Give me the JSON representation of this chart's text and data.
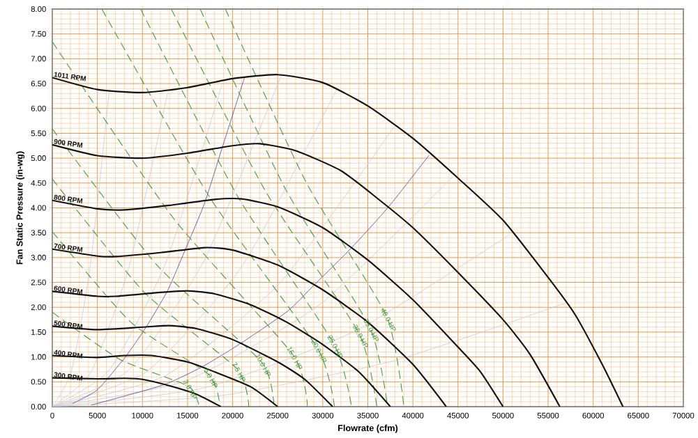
{
  "chart_data": {
    "type": "line",
    "xlabel": "Flowrate (cfm)",
    "ylabel": "Fan Static Pressure (in-wg)",
    "xlim": [
      0,
      70000
    ],
    "ylim": [
      0,
      8
    ],
    "xticks": [
      0,
      {
        "value": 1000,
        "label": null
      },
      {
        "value": 2000,
        "label": null
      },
      {
        "value": 3000,
        "label": null
      },
      {
        "value": 4000,
        "label": null
      },
      5000,
      {
        "value": 6000,
        "label": null
      },
      {
        "value": 7000,
        "label": null
      },
      {
        "value": 8000,
        "label": null
      },
      {
        "value": 9000,
        "label": null
      },
      10000,
      {
        "value": 11000,
        "label": null
      },
      {
        "value": 12000,
        "label": null
      },
      {
        "value": 13000,
        "label": null
      },
      {
        "value": 14000,
        "label": null
      },
      15000,
      {
        "value": 16000,
        "label": null
      },
      {
        "value": 17000,
        "label": null
      },
      {
        "value": 18000,
        "label": null
      },
      {
        "value": 19000,
        "label": null
      },
      20000,
      {
        "value": 21000,
        "label": null
      },
      {
        "value": 22000,
        "label": null
      },
      {
        "value": 23000,
        "label": null
      },
      {
        "value": 24000,
        "label": null
      },
      25000,
      {
        "value": 26000,
        "label": null
      },
      {
        "value": 27000,
        "label": null
      },
      {
        "value": 28000,
        "label": null
      },
      {
        "value": 29000,
        "label": null
      },
      30000,
      {
        "value": 31000,
        "label": null
      },
      {
        "value": 32000,
        "label": null
      },
      {
        "value": 33000,
        "label": null
      },
      {
        "value": 34000,
        "label": null
      },
      35000,
      {
        "value": 36000,
        "label": null
      },
      {
        "value": 37000,
        "label": null
      },
      {
        "value": 38000,
        "label": null
      },
      {
        "value": 39000,
        "label": null
      },
      40000,
      {
        "value": 41000,
        "label": null
      },
      {
        "value": 42000,
        "label": null
      },
      {
        "value": 43000,
        "label": null
      },
      {
        "value": 44000,
        "label": null
      },
      45000,
      {
        "value": 46000,
        "label": null
      },
      {
        "value": 47000,
        "label": null
      },
      {
        "value": 48000,
        "label": null
      },
      {
        "value": 49000,
        "label": null
      },
      50000,
      {
        "value": 51000,
        "label": null
      },
      {
        "value": 52000,
        "label": null
      },
      {
        "value": 53000,
        "label": null
      },
      {
        "value": 54000,
        "label": null
      },
      55000,
      {
        "value": 56000,
        "label": null
      },
      {
        "value": 57000,
        "label": null
      },
      {
        "value": 58000,
        "label": null
      },
      {
        "value": 59000,
        "label": null
      },
      60000,
      {
        "value": 61000,
        "label": null
      },
      {
        "value": 62000,
        "label": null
      },
      {
        "value": 63000,
        "label": null
      },
      {
        "value": 64000,
        "label": null
      },
      65000,
      {
        "value": 66000,
        "label": null
      },
      {
        "value": 67000,
        "label": null
      },
      {
        "value": 68000,
        "label": null
      },
      {
        "value": 69000,
        "label": null
      },
      70000
    ],
    "yticks": [
      {
        "value": 0,
        "label": "0.00"
      },
      {
        "value": 0.1,
        "label": null
      },
      {
        "value": 0.2,
        "label": null
      },
      {
        "value": 0.3,
        "label": null
      },
      {
        "value": 0.4,
        "label": null
      },
      {
        "value": 0.5,
        "label": "0.50"
      },
      {
        "value": 0.6,
        "label": null
      },
      {
        "value": 0.7,
        "label": null
      },
      {
        "value": 0.8,
        "label": null
      },
      {
        "value": 0.9,
        "label": null
      },
      {
        "value": 1,
        "label": "1.00"
      },
      {
        "value": 1.1,
        "label": null
      },
      {
        "value": 1.2,
        "label": null
      },
      {
        "value": 1.3,
        "label": null
      },
      {
        "value": 1.4,
        "label": null
      },
      {
        "value": 1.5,
        "label": "1.50"
      },
      {
        "value": 1.6,
        "label": null
      },
      {
        "value": 1.7,
        "label": null
      },
      {
        "value": 1.8,
        "label": null
      },
      {
        "value": 1.9,
        "label": null
      },
      {
        "value": 2,
        "label": "2.00"
      },
      {
        "value": 2.1,
        "label": null
      },
      {
        "value": 2.2,
        "label": null
      },
      {
        "value": 2.3,
        "label": null
      },
      {
        "value": 2.4,
        "label": null
      },
      {
        "value": 2.5,
        "label": "2.50"
      },
      {
        "value": 2.6,
        "label": null
      },
      {
        "value": 2.7,
        "label": null
      },
      {
        "value": 2.8,
        "label": null
      },
      {
        "value": 2.9,
        "label": null
      },
      {
        "value": 3,
        "label": "3.00"
      },
      {
        "value": 3.1,
        "label": null
      },
      {
        "value": 3.2,
        "label": null
      },
      {
        "value": 3.3,
        "label": null
      },
      {
        "value": 3.4,
        "label": null
      },
      {
        "value": 3.5,
        "label": "3.50"
      },
      {
        "value": 3.6,
        "label": null
      },
      {
        "value": 3.7,
        "label": null
      },
      {
        "value": 3.8,
        "label": null
      },
      {
        "value": 3.9,
        "label": null
      },
      {
        "value": 4,
        "label": "4.00"
      },
      {
        "value": 4.1,
        "label": null
      },
      {
        "value": 4.2,
        "label": null
      },
      {
        "value": 4.3,
        "label": null
      },
      {
        "value": 4.4,
        "label": null
      },
      {
        "value": 4.5,
        "label": "4.50"
      },
      {
        "value": 4.6,
        "label": null
      },
      {
        "value": 4.7,
        "label": null
      },
      {
        "value": 4.8,
        "label": null
      },
      {
        "value": 4.9,
        "label": null
      },
      {
        "value": 5,
        "label": "5.00"
      },
      {
        "value": 5.1,
        "label": null
      },
      {
        "value": 5.2,
        "label": null
      },
      {
        "value": 5.3,
        "label": null
      },
      {
        "value": 5.4,
        "label": null
      },
      {
        "value": 5.5,
        "label": "5.50"
      },
      {
        "value": 5.6,
        "label": null
      },
      {
        "value": 5.7,
        "label": null
      },
      {
        "value": 5.8,
        "label": null
      },
      {
        "value": 5.9,
        "label": null
      },
      {
        "value": 6,
        "label": "6.00"
      },
      {
        "value": 6.1,
        "label": null
      },
      {
        "value": 6.2,
        "label": null
      },
      {
        "value": 6.3,
        "label": null
      },
      {
        "value": 6.4,
        "label": null
      },
      {
        "value": 6.5,
        "label": "6.50"
      },
      {
        "value": 6.6,
        "label": null
      },
      {
        "value": 6.7,
        "label": null
      },
      {
        "value": 6.8,
        "label": null
      },
      {
        "value": 6.9,
        "label": null
      },
      {
        "value": 7,
        "label": "7.00"
      },
      {
        "value": 7.1,
        "label": null
      },
      {
        "value": 7.2,
        "label": null
      },
      {
        "value": 7.3,
        "label": null
      },
      {
        "value": 7.4,
        "label": null
      },
      {
        "value": 7.5,
        "label": "7.50"
      },
      {
        "value": 7.6,
        "label": null
      },
      {
        "value": 7.7,
        "label": null
      },
      {
        "value": 7.8,
        "label": null
      },
      {
        "value": 7.9,
        "label": null
      },
      {
        "value": 8,
        "label": "8.00"
      }
    ],
    "grid": true,
    "marker": "none",
    "series": [
      {
        "color": "#c8c8d2",
        "line_style": "solid",
        "x": [
          0,
          2100,
          4200,
          6300
        ],
        "values": [
          0,
          0.7,
          2.81,
          6.32
        ]
      },
      {
        "color": "#c8c8d2",
        "line_style": "solid",
        "x": [
          0,
          4300,
          8500,
          12800
        ],
        "values": [
          0,
          0.7,
          2.81,
          6.32
        ]
      },
      {
        "color": "#c8c8d2",
        "line_style": "solid",
        "x": [
          0,
          6300,
          12600,
          18900
        ],
        "values": [
          0,
          0.73,
          2.9,
          6.53
        ]
      },
      {
        "color": "#c8c8d2",
        "line_style": "solid",
        "x": [
          0,
          8500,
          16900,
          25400
        ],
        "values": [
          0,
          0.74,
          2.96,
          6.67
        ]
      },
      {
        "color": "#c8c8d2",
        "line_style": "solid",
        "x": [
          0,
          10500,
          21100,
          31600
        ],
        "values": [
          0,
          0.71,
          2.84,
          6.4
        ]
      },
      {
        "color": "#c8c8d2",
        "line_style": "solid",
        "x": [
          0,
          12600,
          25300,
          37900
        ],
        "values": [
          0,
          0.63,
          2.5,
          5.63
        ]
      },
      {
        "color": "#c8c8d2",
        "line_style": "solid",
        "x": [
          0,
          14800,
          29700,
          44500
        ],
        "values": [
          0,
          0.52,
          2.06,
          4.64
        ]
      },
      {
        "color": "#c8c8d2",
        "line_style": "solid",
        "x": [
          0,
          16900,
          33800,
          50700
        ],
        "values": [
          0,
          0.38,
          1.54,
          3.46
        ]
      },
      {
        "color": "#c8c8d2",
        "line_style": "solid",
        "x": [
          0,
          19000,
          38000,
          57000
        ],
        "values": [
          0,
          0.23,
          0.93,
          2.09
        ]
      },
      {
        "color": "#4444a0",
        "line_style": "solid",
        "x": [
          2200,
          5000,
          8100,
          10400,
          12800,
          14800,
          16900,
          18900,
          21300
        ],
        "values": [
          0.06,
          0.34,
          1.0,
          1.6,
          2.34,
          3.18,
          4.1,
          5.24,
          6.61
        ]
      },
      {
        "color": "#4444a0",
        "line_style": "solid",
        "x": [
          4300,
          12200,
          16600,
          20700,
          26100,
          29000,
          33100,
          37300,
          41800
        ],
        "values": [
          0.03,
          0.43,
          0.8,
          1.25,
          1.92,
          2.44,
          3.18,
          4.02,
          5.06
        ]
      },
      {
        "name": "3.0 HP",
        "color": "#3a9a3a",
        "line_style": "dashed",
        "x": [
          0,
          7500,
          15100,
          16300
        ],
        "values": [
          1.9,
          0.95,
          0.41,
          0
        ]
      },
      {
        "name": "5.0 HP",
        "color": "#3a9a3a",
        "line_style": "dashed",
        "x": [
          0,
          8700,
          17400,
          18600
        ],
        "values": [
          3.52,
          1.7,
          0.64,
          0
        ]
      },
      {
        "name": "7.5 HP",
        "color": "#3a9a3a",
        "line_style": "dashed",
        "x": [
          0,
          10200,
          20500,
          21800
        ],
        "values": [
          4.58,
          2.3,
          0.76,
          0
        ]
      },
      {
        "name": "10.0 HP",
        "color": "#3a9a3a",
        "line_style": "dashed",
        "x": [
          0,
          11600,
          23200,
          24600
        ],
        "values": [
          5.59,
          2.85,
          0.9,
          0
        ]
      },
      {
        "name": "15.0 HP",
        "color": "#3a9a3a",
        "line_style": "dashed",
        "x": [
          0,
          13400,
          26700,
          28300
        ],
        "values": [
          7.34,
          3.8,
          1.04,
          0
        ]
      },
      {
        "name": "20.0 HP",
        "color": "#3a9a3a",
        "line_style": "dashed",
        "x": [
          5500,
          17500,
          29400,
          31300
        ],
        "values": [
          8,
          4.2,
          1.18,
          0
        ]
      },
      {
        "name": "25.0 HP",
        "color": "#3a9a3a",
        "line_style": "dashed",
        "x": [
          9800,
          20500,
          31200,
          33200
        ],
        "values": [
          8,
          4.25,
          1.27,
          0
        ]
      },
      {
        "name": "30.0 HP",
        "color": "#3a9a3a",
        "line_style": "dashed",
        "x": [
          13200,
          23600,
          34000,
          36000
        ],
        "values": [
          8,
          4.35,
          1.48,
          0
        ]
      },
      {
        "name": "35.0 HP",
        "color": "#3a9a3a",
        "line_style": "dashed",
        "x": [
          16400,
          25800,
          35200,
          37200
        ],
        "values": [
          8,
          4.4,
          1.6,
          0
        ]
      },
      {
        "name": "40.0 HP",
        "color": "#3a9a3a",
        "line_style": "dashed",
        "x": [
          19200,
          28200,
          37100,
          39000
        ],
        "values": [
          8,
          4.5,
          1.81,
          0
        ]
      },
      {
        "name": "300 RPM",
        "color": "#111111",
        "line_style": "solid",
        "x": [
          0,
          5000,
          8000,
          10000,
          13000,
          16000,
          18700
        ],
        "values": [
          0.58,
          0.56,
          0.57,
          0.55,
          0.42,
          0.25,
          0
        ]
      },
      {
        "name": "400 RPM",
        "color": "#111111",
        "line_style": "solid",
        "x": [
          0,
          5000,
          8000,
          11000,
          15000,
          18000,
          22000,
          25000
        ],
        "values": [
          1.03,
          0.99,
          1.03,
          1.03,
          0.9,
          0.7,
          0.4,
          0
        ]
      },
      {
        "name": "500 RPM",
        "color": "#111111",
        "line_style": "solid",
        "x": [
          0,
          5000,
          10000,
          13000,
          16000,
          20000,
          25000,
          28000,
          31100
        ],
        "values": [
          1.62,
          1.55,
          1.6,
          1.63,
          1.57,
          1.35,
          0.9,
          0.55,
          0
        ]
      },
      {
        "name": "600 RPM",
        "color": "#111111",
        "line_style": "solid",
        "x": [
          0,
          5000,
          7000,
          12000,
          15000,
          18000,
          22000,
          26000,
          30000,
          34000,
          37500
        ],
        "values": [
          2.32,
          2.22,
          2.22,
          2.3,
          2.33,
          2.27,
          2.05,
          1.7,
          1.25,
          0.7,
          0
        ]
      },
      {
        "name": "700 RPM",
        "color": "#111111",
        "line_style": "solid",
        "x": [
          0,
          5000,
          7000,
          12000,
          17000,
          20000,
          25000,
          30000,
          35000,
          40000,
          43700
        ],
        "values": [
          3.17,
          3.03,
          3.02,
          3.1,
          3.2,
          3.15,
          2.85,
          2.35,
          1.7,
          0.85,
          0
        ]
      },
      {
        "name": "800 RPM",
        "color": "#111111",
        "line_style": "solid",
        "x": [
          0,
          5000,
          8000,
          13000,
          18000,
          21000,
          25000,
          30000,
          35000,
          40000,
          45000,
          47500,
          50000
        ],
        "values": [
          4.15,
          3.98,
          3.96,
          4.05,
          4.17,
          4.18,
          4.02,
          3.6,
          2.95,
          2.15,
          1.2,
          0.7,
          0
        ]
      },
      {
        "name": "900 RPM",
        "color": "#111111",
        "line_style": "solid",
        "x": [
          0,
          5000,
          10000,
          15000,
          20000,
          23000,
          27000,
          32000,
          36000,
          40000,
          45000,
          50000,
          53000,
          56300
        ],
        "values": [
          5.27,
          5.05,
          5.0,
          5.1,
          5.25,
          5.29,
          5.15,
          4.75,
          4.2,
          3.6,
          2.7,
          1.75,
          1.05,
          0
        ]
      },
      {
        "name": "1011 RPM",
        "color": "#111111",
        "line_style": "solid",
        "x": [
          0,
          5000,
          10000,
          15000,
          20000,
          25000,
          30000,
          35000,
          40000,
          45000,
          50000,
          55000,
          58000,
          61000,
          63300
        ],
        "values": [
          6.62,
          6.38,
          6.32,
          6.42,
          6.6,
          6.68,
          6.52,
          6.05,
          5.4,
          4.6,
          3.75,
          2.6,
          1.85,
          0.85,
          0
        ]
      }
    ]
  }
}
